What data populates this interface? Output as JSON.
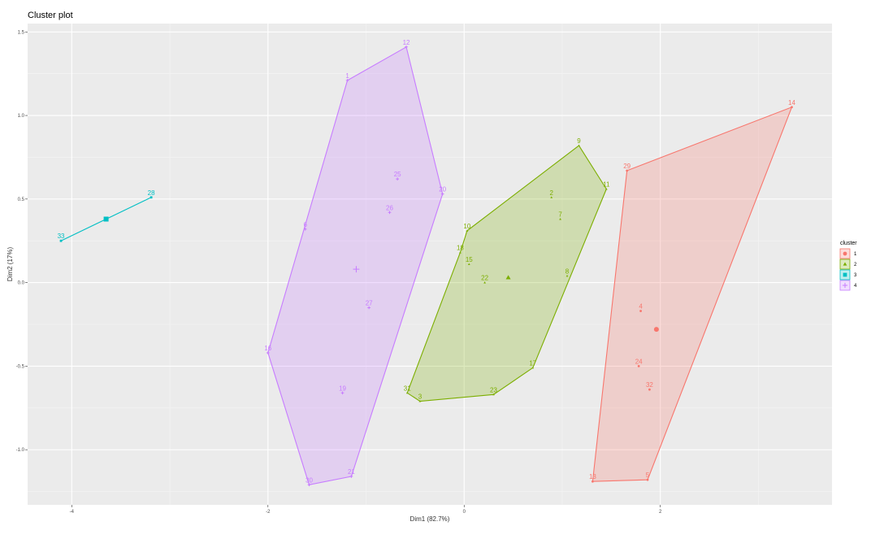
{
  "chart_data": {
    "type": "scatter",
    "title": "Cluster plot",
    "xlabel": "Dim1 (82.7%)",
    "ylabel": "Dim2 (17%)",
    "xlim": [
      -4.45,
      3.75
    ],
    "ylim": [
      -1.33,
      1.55
    ],
    "x_ticks": [
      -4,
      -2,
      0,
      2
    ],
    "x_tick_labels": [
      "-4",
      "-2",
      "0",
      "2"
    ],
    "y_ticks": [
      -1.0,
      -0.5,
      0.0,
      0.5,
      1.0,
      1.5
    ],
    "y_tick_labels": [
      "-1.0",
      "-0.5",
      "0.0",
      "0.5",
      "1.0",
      "1.5"
    ],
    "grid": true,
    "legend": {
      "title": "cluster",
      "placement": "right"
    },
    "clusters": [
      {
        "name": "1",
        "color": "#F8766D",
        "marker": "circle",
        "centroid": [
          1.96,
          -0.28
        ],
        "hull": [
          "14",
          "5",
          "13",
          "29"
        ],
        "points": [
          {
            "label": "14",
            "x": 3.34,
            "y": 1.05
          },
          {
            "label": "29",
            "x": 1.66,
            "y": 0.67
          },
          {
            "label": "4",
            "x": 1.8,
            "y": -0.17
          },
          {
            "label": "24",
            "x": 1.78,
            "y": -0.5
          },
          {
            "label": "32",
            "x": 1.89,
            "y": -0.64
          },
          {
            "label": "5",
            "x": 1.87,
            "y": -1.18
          },
          {
            "label": "13",
            "x": 1.31,
            "y": -1.19
          }
        ]
      },
      {
        "name": "2",
        "color": "#7CAE00",
        "marker": "triangle",
        "centroid": [
          0.45,
          0.03
        ],
        "hull": [
          "9",
          "11",
          "17",
          "23",
          "3",
          "31",
          "18",
          "10"
        ],
        "points": [
          {
            "label": "9",
            "x": 1.17,
            "y": 0.82
          },
          {
            "label": "11",
            "x": 1.45,
            "y": 0.56
          },
          {
            "label": "2",
            "x": 0.89,
            "y": 0.51
          },
          {
            "label": "7",
            "x": 0.98,
            "y": 0.38
          },
          {
            "label": "10",
            "x": 0.03,
            "y": 0.31
          },
          {
            "label": "18",
            "x": -0.04,
            "y": 0.18
          },
          {
            "label": "15",
            "x": 0.05,
            "y": 0.11
          },
          {
            "label": "22",
            "x": 0.21,
            "y": 0.0
          },
          {
            "label": "8",
            "x": 1.05,
            "y": 0.04
          },
          {
            "label": "17",
            "x": 0.7,
            "y": -0.51
          },
          {
            "label": "23",
            "x": 0.3,
            "y": -0.67
          },
          {
            "label": "31",
            "x": -0.58,
            "y": -0.66
          },
          {
            "label": "3",
            "x": -0.45,
            "y": -0.71
          }
        ]
      },
      {
        "name": "3",
        "color": "#00BFC4",
        "marker": "square",
        "centroid": [
          -3.65,
          0.38
        ],
        "hull": [
          "33",
          "28"
        ],
        "points": [
          {
            "label": "28",
            "x": -3.19,
            "y": 0.51
          },
          {
            "label": "33",
            "x": -4.11,
            "y": 0.25
          }
        ]
      },
      {
        "name": "4",
        "color": "#C77CFF",
        "marker": "cross",
        "centroid": [
          -1.1,
          0.08
        ],
        "hull": [
          "12",
          "20",
          "21",
          "30",
          "16",
          "1"
        ],
        "points": [
          {
            "label": "12",
            "x": -0.59,
            "y": 1.41
          },
          {
            "label": "1",
            "x": -1.19,
            "y": 1.21
          },
          {
            "label": "25",
            "x": -0.68,
            "y": 0.62
          },
          {
            "label": "20",
            "x": -0.22,
            "y": 0.53
          },
          {
            "label": "26",
            "x": -0.76,
            "y": 0.42
          },
          {
            "label": "6",
            "x": -1.62,
            "y": 0.32
          },
          {
            "label": "27",
            "x": -0.97,
            "y": -0.15
          },
          {
            "label": "16",
            "x": -2.0,
            "y": -0.42
          },
          {
            "label": "19",
            "x": -1.24,
            "y": -0.66
          },
          {
            "label": "21",
            "x": -1.15,
            "y": -1.16
          },
          {
            "label": "30",
            "x": -1.58,
            "y": -1.21
          }
        ]
      }
    ]
  }
}
